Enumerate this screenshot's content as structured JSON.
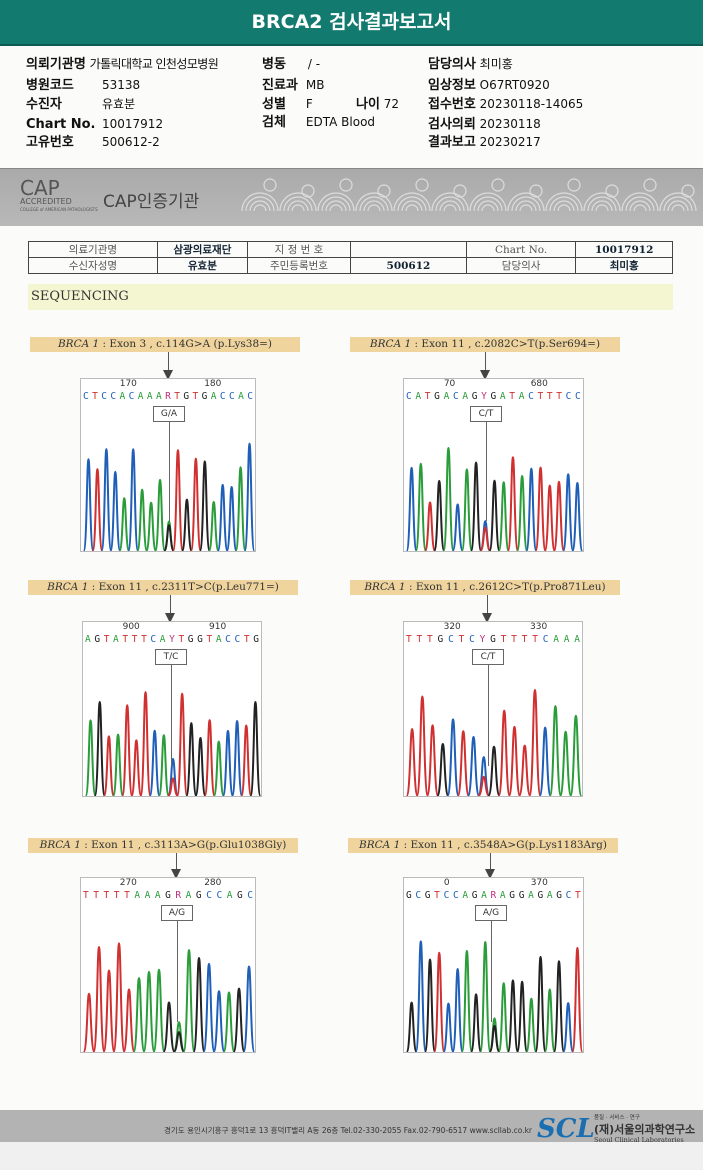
{
  "title": "BRCA2 검사결과보고서",
  "header": {
    "institution_label": "의뢰기관명",
    "institution": "가톨릭대학교 인천성모병원",
    "ward_label": "병동",
    "ward": "/ -",
    "doctor_label": "담당의사",
    "doctor": "최미홍",
    "hospital_code_label": "병원코드",
    "hospital_code": "53138",
    "dept_label": "진료과",
    "dept": "MB",
    "clinical_label": "임상정보",
    "clinical": "O67RT0920",
    "patient_label": "수진자",
    "patient": "유효분",
    "sex_label": "성별",
    "sex": "F",
    "age_label": "나이",
    "age": "72",
    "receipt_label": "접수번호",
    "receipt": "20230118-14065",
    "chart_label": "Chart No.",
    "chart": "10017912",
    "specimen_label": "검체",
    "specimen": "EDTA Blood",
    "request_label": "검사의뢰",
    "request": "20230118",
    "unique_label": "고유번호",
    "unique": "500612-2",
    "report_label": "결과보고",
    "report": "20230217"
  },
  "cap": {
    "logo_text": "CAP",
    "logo_sub": "ACCREDITED",
    "logo_small": "COLLEGE of AMERICAN PATHOLOGISTS",
    "title": "CAP인증기관"
  },
  "patient_table": {
    "row1": [
      "의료기관명",
      "삼광의료재단",
      "지 정 번 호",
      "",
      "Chart No.",
      "10017912"
    ],
    "row2": [
      "수신자성명",
      "유효분",
      "주민등록번호",
      "500612",
      "담당의사",
      "최미홍"
    ]
  },
  "section": "SEQUENCING",
  "panels": [
    {
      "gene": "BRCA 1",
      "desc": " : Exon 3 , c.114G>A (p.Lys38=)",
      "pos1": "170",
      "pos2": "180",
      "bases": "CTCCACAAARTGTGACCAC",
      "het": "G/A"
    },
    {
      "gene": "BRCA 1",
      "desc": " : Exon 11 , c.2082C>T(p.Ser694=)",
      "pos1": "70",
      "pos2": "680",
      "bases": "CATGACAGYGATACTTTCC",
      "het": "C/T"
    },
    {
      "gene": "BRCA 1",
      "desc": " : Exon 11 , c.2311T>C(p.Leu771=)",
      "pos1": "900",
      "pos2": "910",
      "bases": "AGTATTTCAYTGGTACCTG",
      "het": "T/C"
    },
    {
      "gene": "BRCA 1",
      "desc": " : Exon 11 , c.2612C>T(p.Pro871Leu)",
      "pos1": "320",
      "pos2": "330",
      "bases": "TTTGCTCYGTTTTCAAA",
      "het": "C/T"
    },
    {
      "gene": "BRCA 1",
      "desc": " : Exon 11 , c.3113A>G(p.Glu1038Gly)",
      "pos1": "270",
      "pos2": "280",
      "bases": "TTTTTAAAGRAGCCAGC",
      "het": "A/G"
    },
    {
      "gene": "BRCA 1",
      "desc": " : Exon 11 , c.3548A>G(p.Lys1183Arg)",
      "pos1": "0",
      "pos2": "370",
      "bases": "GCGTCCAGARAGGAGAGCT",
      "het": "A/G"
    }
  ],
  "base_colors": {
    "A": "#2a9d3a",
    "C": "#1f5fb8",
    "G": "#222222",
    "T": "#d03030",
    "R": "#c0307a",
    "Y": "#c0307a"
  },
  "footer": {
    "address": "경기도 용인시기흥구 흥덕1로 13 흥덕IT밸리 A동 26층  Tel.02-330-2055  Fax.02-790-6517  www.scllab.co.kr",
    "logo": "SCL",
    "motto": "품질 · 서비스 · 연구",
    "org_kr": "(재)서울의과학연구소",
    "org_en": "Seoul Clinical Laboratories"
  }
}
